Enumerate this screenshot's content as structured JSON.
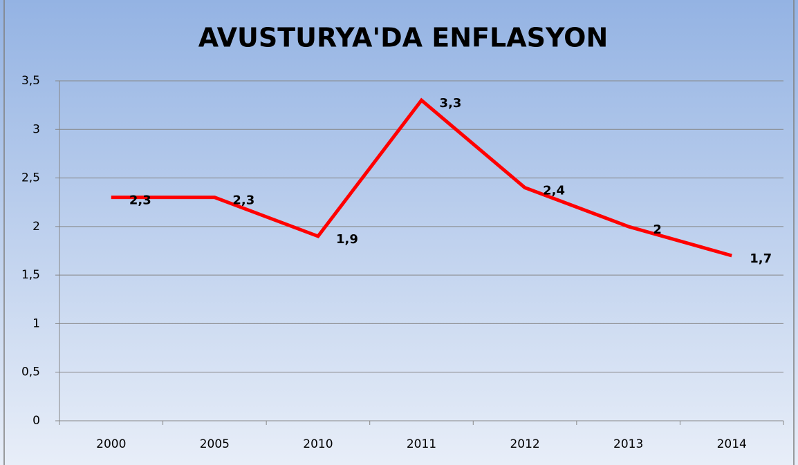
{
  "chart_data": {
    "type": "line",
    "title": "AVUSTURYA'DA ENFLASYON",
    "categories": [
      "2000",
      "2005",
      "2010",
      "2011",
      "2012",
      "2013",
      "2014"
    ],
    "series": [
      {
        "name": null,
        "color": "#ff0000",
        "values": [
          2.3,
          2.3,
          1.9,
          3.3,
          2.4,
          2,
          1.7
        ],
        "value_labels": [
          "2,3",
          "2,3",
          "1,9",
          "3,3",
          "2,4",
          "2",
          "1,7"
        ]
      }
    ],
    "ylim": [
      0,
      3.5
    ],
    "yticks": [
      0,
      {
        "value": 0.5,
        "label": "0,5"
      },
      1,
      {
        "value": 1.5,
        "label": "1,5"
      },
      2,
      {
        "value": 2.5,
        "label": "2,5"
      },
      3,
      {
        "value": 3.5,
        "label": "3,5"
      }
    ],
    "grid": true
  }
}
